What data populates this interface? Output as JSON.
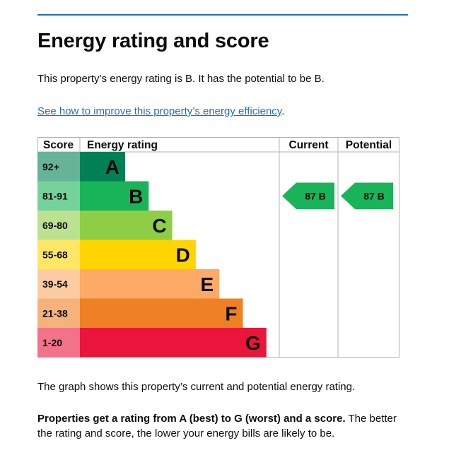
{
  "heading": "Energy rating and score",
  "summary": "This property’s energy rating is B. It has the potential to be B.",
  "improve_link": "See how to improve this property’s energy efficiency",
  "improve_link_suffix": ".",
  "graph_caption": "The graph shows this property’s current and potential energy rating.",
  "explain_bold": "Properties get a rating from A (best) to G (worst) and a score.",
  "explain_rest": " The better the rating and score, the lower your energy bills are likely to be.",
  "table": {
    "headers": {
      "score": "Score",
      "rating": "Energy rating",
      "current": "Current",
      "potential": "Potential"
    },
    "bands": [
      {
        "score": "92+",
        "letter": "A",
        "color": "#008054",
        "score_bg": "#66b398"
      },
      {
        "score": "81-91",
        "letter": "B",
        "color": "#19b459",
        "score_bg": "#75d29b"
      },
      {
        "score": "69-80",
        "letter": "C",
        "color": "#8dce46",
        "score_bg": "#bbe290"
      },
      {
        "score": "55-68",
        "letter": "D",
        "color": "#ffd500",
        "score_bg": "#ffe666"
      },
      {
        "score": "39-54",
        "letter": "E",
        "color": "#fcaa65",
        "score_bg": "#fdcca3"
      },
      {
        "score": "21-38",
        "letter": "F",
        "color": "#ef8023",
        "score_bg": "#f5b37b"
      },
      {
        "score": "1-20",
        "letter": "G",
        "color": "#e9153b",
        "score_bg": "#f27389"
      }
    ],
    "current": {
      "score": 87,
      "letter": "B",
      "label": "87 B",
      "color": "#19b459"
    },
    "potential": {
      "score": 87,
      "letter": "B",
      "label": "87 B",
      "color": "#19b459"
    }
  }
}
